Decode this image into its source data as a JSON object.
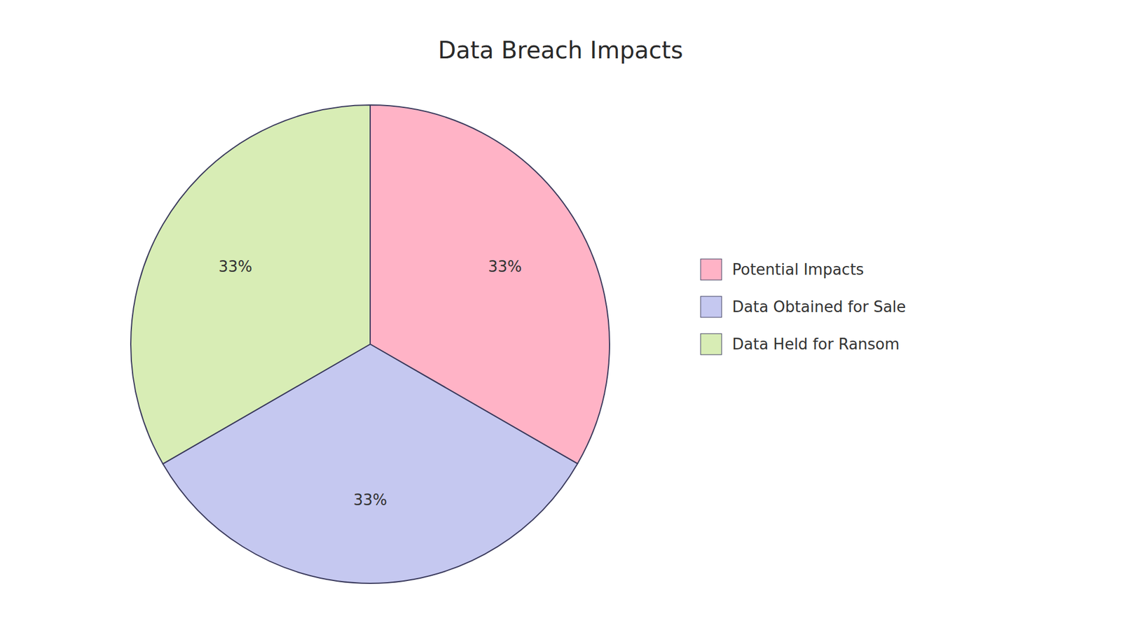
{
  "chart_data": {
    "type": "pie",
    "title": "Data Breach Impacts",
    "categories": [
      "Potential Impacts",
      "Data Obtained for Sale",
      "Data Held for Ransom"
    ],
    "values": [
      33.33,
      33.33,
      33.34
    ],
    "value_labels": [
      "33%",
      "33%",
      "33%"
    ],
    "colors": [
      "#FFB3C6",
      "#C5C8F0",
      "#D8EDB5"
    ],
    "data_labels": true,
    "legend": "right"
  }
}
